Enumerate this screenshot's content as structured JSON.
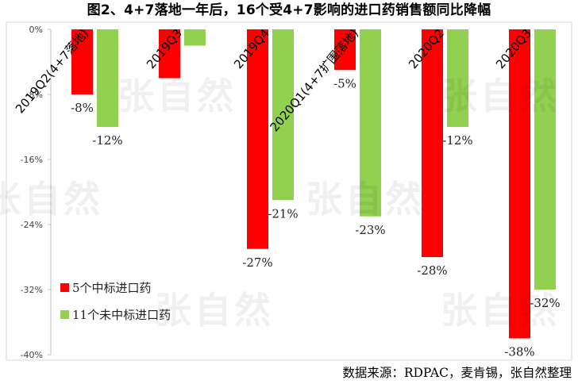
{
  "title": "图2、4+7落地一年后，16个受4+7影响的进口药销售额同比降幅",
  "source": "数据来源：RDPAC，麦肯锡，张自然整理",
  "watermark": "张自然",
  "colors": {
    "series1": "#ff0000",
    "series2": "#92d050"
  },
  "chart_data": {
    "type": "bar",
    "categories": [
      "2019Q2(4+7落地)",
      "2019Q3",
      "2019Q4",
      "2020Q1(4+7扩围落地)",
      "2020Q2",
      "2020Q3"
    ],
    "series": [
      {
        "name": "5个中标进口药",
        "values": [
          -8,
          -6,
          -27,
          -5,
          -28,
          -38
        ]
      },
      {
        "name": "11个未中标进口药",
        "values": [
          -12,
          -2,
          -21,
          -23,
          -12,
          -32
        ]
      }
    ],
    "data_labels": [
      [
        "-8%",
        "",
        "-27%",
        "-5%",
        "-28%",
        "-38%"
      ],
      [
        "-12%",
        "",
        "-21%",
        "-23%",
        "-12%",
        "-32%"
      ]
    ],
    "y_ticks": [
      "0%",
      "-8%",
      "-16%",
      "-24%",
      "-32%",
      "-40%"
    ],
    "ylim": [
      -40,
      0
    ],
    "legend_position": "bottom-left",
    "grid": false
  }
}
